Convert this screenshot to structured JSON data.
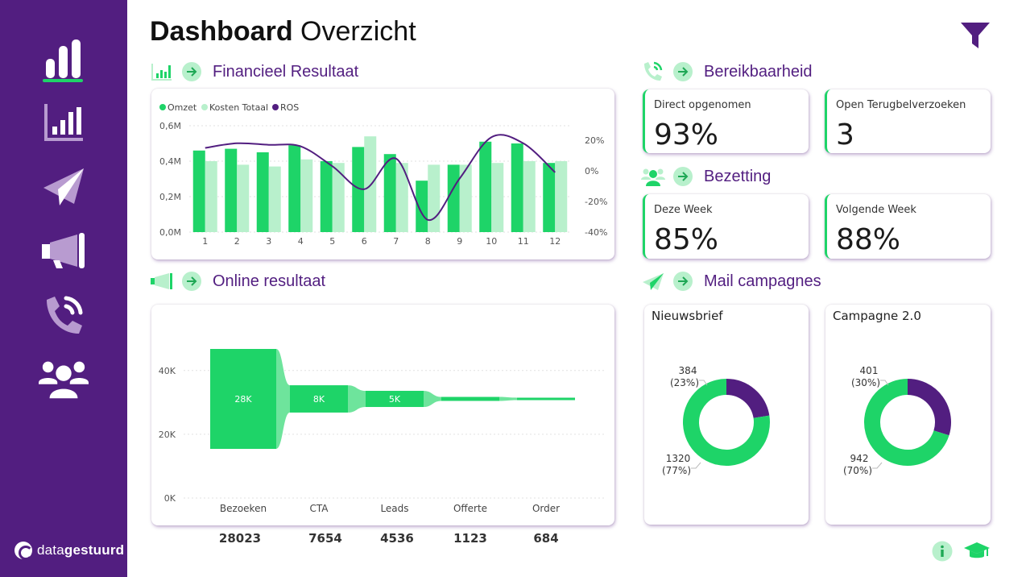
{
  "page": {
    "title_bold": "Dashboard",
    "title_light": "Overzicht"
  },
  "sidebar": {
    "items": [
      {
        "icon": "bar-chart-icon",
        "active": true
      },
      {
        "icon": "financial-chart-icon",
        "active": false
      },
      {
        "icon": "paper-plane-icon",
        "active": false
      },
      {
        "icon": "megaphone-icon",
        "active": false
      },
      {
        "icon": "phone-icon",
        "active": false
      },
      {
        "icon": "users-icon",
        "active": false
      }
    ],
    "logo_light": "data",
    "logo_bold": "gestuurd"
  },
  "sections": {
    "financieel": "Financieel Resultaat",
    "bereikbaarheid": "Bereikbaarheid",
    "bezetting": "Bezetting",
    "online": "Online resultaat",
    "mail": "Mail campagnes"
  },
  "kpis": {
    "direct": {
      "label": "Direct opgenomen",
      "value": "93%"
    },
    "terugbel": {
      "label": "Open Terugbelverzoeken",
      "value": "3"
    },
    "deze_week": {
      "label": "Deze Week",
      "value": "85%"
    },
    "volgende_week": {
      "label": "Volgende Week",
      "value": "88%"
    }
  },
  "colors": {
    "purple": "#521e80",
    "green": "#1ed468",
    "light_green": "#b8f0cc"
  },
  "chart_data": [
    {
      "type": "bar",
      "title": "Financieel Resultaat",
      "categories": [
        "1",
        "2",
        "3",
        "4",
        "5",
        "6",
        "7",
        "8",
        "9",
        "10",
        "11",
        "12"
      ],
      "series": [
        {
          "name": "Omzet",
          "kind": "bar",
          "values": [
            0.46,
            0.47,
            0.45,
            0.49,
            0.4,
            0.48,
            0.44,
            0.29,
            0.38,
            0.51,
            0.5,
            0.39
          ]
        },
        {
          "name": "Kosten Totaal",
          "kind": "bar",
          "values": [
            0.4,
            0.38,
            0.37,
            0.41,
            0.39,
            0.54,
            0.39,
            0.38,
            0.38,
            0.39,
            0.4,
            0.4
          ]
        },
        {
          "name": "ROS",
          "kind": "line",
          "axis": "secondary",
          "values": [
            15,
            18,
            17,
            16,
            3,
            -12,
            8,
            -32,
            -5,
            22,
            18,
            -1
          ]
        }
      ],
      "ylim": [
        0,
        0.6
      ],
      "yticks": [
        "0,0M",
        "0,2M",
        "0,4M",
        "0,6M"
      ],
      "y2lim": [
        -40,
        20
      ],
      "y2ticks": [
        "20%",
        "0%",
        "-20%",
        "-40%"
      ],
      "legend": "top-left"
    },
    {
      "type": "bar",
      "subtype": "funnel",
      "title": "Online resultaat",
      "categories": [
        "Bezoeken",
        "CTA",
        "Leads",
        "Offerte",
        "Order"
      ],
      "values": [
        28023,
        7654,
        4536,
        1123,
        684
      ],
      "labels": [
        "28K",
        "8K",
        "5K",
        "",
        ""
      ],
      "totals": [
        "28023",
        "7654",
        "4536",
        "1123",
        "684"
      ],
      "ylim": [
        0,
        45000
      ],
      "yticks": [
        "0K",
        "20K",
        "40K"
      ]
    },
    {
      "type": "pie",
      "subtype": "donut",
      "title": "Nieuwsbrief",
      "categories": [
        "384",
        "1320"
      ],
      "values": [
        384,
        1320
      ],
      "labels": [
        [
          "384",
          "(23%)"
        ],
        [
          "1320",
          "(77%)"
        ]
      ],
      "colors": [
        "#521e80",
        "#1ed468"
      ]
    },
    {
      "type": "pie",
      "subtype": "donut",
      "title": "Campagne 2.0",
      "categories": [
        "401",
        "942"
      ],
      "values": [
        401,
        942
      ],
      "labels": [
        [
          "401",
          "(30%)"
        ],
        [
          "942",
          "(70%)"
        ]
      ],
      "colors": [
        "#521e80",
        "#1ed468"
      ]
    }
  ]
}
